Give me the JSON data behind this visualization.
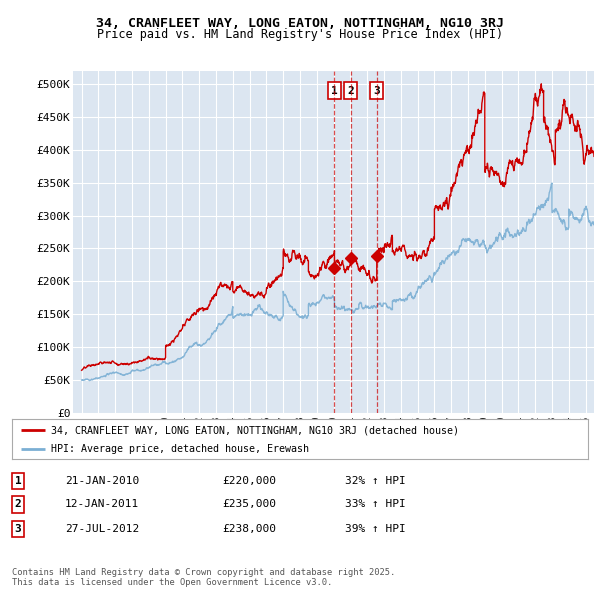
{
  "title1": "34, CRANFLEET WAY, LONG EATON, NOTTINGHAM, NG10 3RJ",
  "title2": "Price paid vs. HM Land Registry's House Price Index (HPI)",
  "ylabel_ticks": [
    "£0",
    "£50K",
    "£100K",
    "£150K",
    "£200K",
    "£250K",
    "£300K",
    "£350K",
    "£400K",
    "£450K",
    "£500K"
  ],
  "ytick_values": [
    0,
    50000,
    100000,
    150000,
    200000,
    250000,
    300000,
    350000,
    400000,
    450000,
    500000
  ],
  "ylim": [
    0,
    520000
  ],
  "xlim_start": 1994.5,
  "xlim_end": 2025.5,
  "plot_bg_color": "#dce6f1",
  "outer_bg_color": "#ffffff",
  "grid_color": "#ffffff",
  "red_line_color": "#cc0000",
  "blue_line_color": "#7bafd4",
  "legend_label_red": "34, CRANFLEET WAY, LONG EATON, NOTTINGHAM, NG10 3RJ (detached house)",
  "legend_label_blue": "HPI: Average price, detached house, Erewash",
  "transactions": [
    {
      "num": 1,
      "date": "21-JAN-2010",
      "price": "£220,000",
      "hpi": "32% ↑ HPI",
      "x": 2010.05
    },
    {
      "num": 2,
      "date": "12-JAN-2011",
      "price": "£235,000",
      "hpi": "33% ↑ HPI",
      "x": 2011.03
    },
    {
      "num": 3,
      "date": "27-JUL-2012",
      "price": "£238,000",
      "hpi": "39% ↑ HPI",
      "x": 2012.57
    }
  ],
  "transaction_prices": [
    220000,
    235000,
    238000
  ],
  "footer": "Contains HM Land Registry data © Crown copyright and database right 2025.\nThis data is licensed under the Open Government Licence v3.0.",
  "xtick_years": [
    1995,
    1996,
    1997,
    1998,
    1999,
    2000,
    2001,
    2002,
    2003,
    2004,
    2005,
    2006,
    2007,
    2008,
    2009,
    2010,
    2011,
    2012,
    2013,
    2014,
    2015,
    2016,
    2017,
    2018,
    2019,
    2020,
    2021,
    2022,
    2023,
    2024,
    2025
  ]
}
